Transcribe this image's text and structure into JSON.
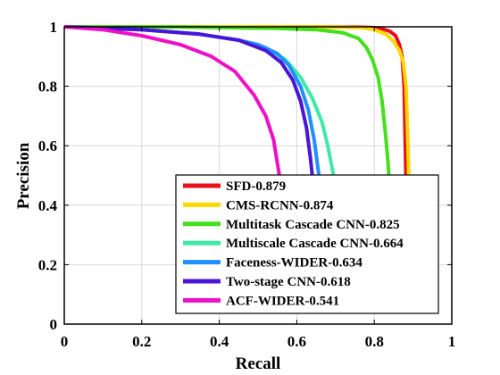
{
  "chart_data": {
    "type": "line",
    "xlabel": "Recall",
    "ylabel": "Precision",
    "xlim": [
      0,
      1
    ],
    "ylim": [
      0,
      1
    ],
    "xticks": [
      "0",
      "0.2",
      "0.4",
      "0.6",
      "0.8",
      "1"
    ],
    "yticks": [
      "0",
      "0.2",
      "0.4",
      "0.6",
      "0.8",
      "1"
    ],
    "grid": true,
    "legend_position": "bottom-right",
    "series": [
      {
        "name": "SFD-0.879",
        "color": "#e8101a",
        "x": [
          0,
          0.5,
          0.75,
          0.8,
          0.82,
          0.84,
          0.855,
          0.865,
          0.872,
          0.877,
          0.88,
          0.883,
          0.886,
          0.888,
          0.89
        ],
        "y": [
          1,
          1,
          0.999,
          0.997,
          0.993,
          0.985,
          0.97,
          0.94,
          0.9,
          0.8,
          0.6,
          0.42,
          0.3,
          0.2,
          0.1
        ]
      },
      {
        "name": "CMS-RCNN-0.874",
        "color": "#ffd700",
        "x": [
          0,
          0.45,
          0.7,
          0.77,
          0.8,
          0.83,
          0.85,
          0.865,
          0.875,
          0.882,
          0.887,
          0.89,
          0.893,
          0.895
        ],
        "y": [
          1,
          1,
          0.999,
          0.997,
          0.99,
          0.975,
          0.95,
          0.92,
          0.88,
          0.8,
          0.6,
          0.42,
          0.3,
          0.2
        ]
      },
      {
        "name": "Multitask Cascade CNN-0.825",
        "color": "#44e01c",
        "x": [
          0,
          0.3,
          0.55,
          0.65,
          0.72,
          0.76,
          0.78,
          0.795,
          0.81,
          0.82,
          0.828,
          0.835,
          0.84,
          0.845,
          0.85
        ],
        "y": [
          1,
          0.999,
          0.995,
          0.99,
          0.98,
          0.96,
          0.93,
          0.89,
          0.83,
          0.75,
          0.65,
          0.55,
          0.45,
          0.35,
          0.25
        ]
      },
      {
        "name": "Multiscale Cascade CNN-0.664",
        "color": "#3eeaa6",
        "x": [
          0,
          0.2,
          0.35,
          0.45,
          0.52,
          0.57,
          0.61,
          0.64,
          0.665,
          0.68,
          0.695,
          0.705,
          0.715,
          0.725
        ],
        "y": [
          1,
          0.99,
          0.975,
          0.955,
          0.93,
          0.89,
          0.83,
          0.76,
          0.68,
          0.6,
          0.5,
          0.4,
          0.3,
          0.2
        ]
      },
      {
        "name": "Faceness-WIDER-0.634",
        "color": "#1e90ff",
        "x": [
          0,
          0.2,
          0.35,
          0.45,
          0.5,
          0.55,
          0.58,
          0.61,
          0.63,
          0.645,
          0.655,
          0.665,
          0.675,
          0.685
        ],
        "y": [
          1,
          0.99,
          0.975,
          0.955,
          0.94,
          0.91,
          0.87,
          0.8,
          0.72,
          0.62,
          0.52,
          0.42,
          0.32,
          0.22
        ]
      },
      {
        "name": "Two-stage CNN-0.618",
        "color": "#4b14d8",
        "x": [
          0,
          0.2,
          0.35,
          0.45,
          0.52,
          0.56,
          0.59,
          0.61,
          0.625,
          0.635,
          0.645,
          0.652,
          0.66
        ],
        "y": [
          1,
          0.99,
          0.975,
          0.955,
          0.92,
          0.88,
          0.82,
          0.75,
          0.66,
          0.56,
          0.44,
          0.32,
          0.2
        ]
      },
      {
        "name": "ACF-WIDER-0.541",
        "color": "#ee10c8",
        "x": [
          0,
          0.1,
          0.2,
          0.3,
          0.38,
          0.44,
          0.49,
          0.52,
          0.54,
          0.555,
          0.565,
          0.57,
          0.575,
          0.58
        ],
        "y": [
          1,
          0.99,
          0.97,
          0.94,
          0.9,
          0.85,
          0.77,
          0.7,
          0.62,
          0.5,
          0.4,
          0.32,
          0.26,
          0.2
        ]
      }
    ]
  }
}
